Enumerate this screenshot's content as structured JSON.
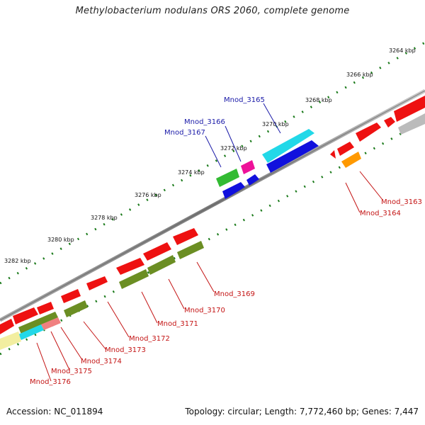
{
  "header": {
    "title": "Methylobacterium nodulans ORS 2060, complete genome"
  },
  "footer": {
    "accession": "Accession: NC_011894",
    "summary": "Topology: circular; Length: 7,772,460 bp; Genes: 7,447"
  },
  "scale_labels": [
    "3264 kbp",
    "3266 kbp",
    "3268 kbp",
    "3270 kbp",
    "3272 kbp",
    "3274 kbp",
    "3276 kbp",
    "3278 kbp",
    "3280 kbp",
    "3282 kbp"
  ],
  "gene_labels_upper": [
    "Mnod_3165",
    "Mnod_3166",
    "Mnod_3167"
  ],
  "gene_labels_lower": [
    "Mnod_3163",
    "Mnod_3164",
    "Mnod_3169",
    "Mnod_3170",
    "Mnod_3171",
    "Mnod_3172",
    "Mnod_3173",
    "Mnod_3174",
    "Mnod_3175",
    "Mnod_3176"
  ],
  "colors": {
    "backbone": "#8a8a8a",
    "ticks": "#1a7a1a",
    "red": "#ee1111",
    "olive": "#6b8e23",
    "cyan": "#22d8e8",
    "blue": "#1111dd",
    "green": "#33bb33",
    "magenta": "#ee1199",
    "orange": "#ff9900",
    "gray": "#bbbbbb",
    "pink": "#f08080",
    "yellow": "#f2eea0"
  }
}
